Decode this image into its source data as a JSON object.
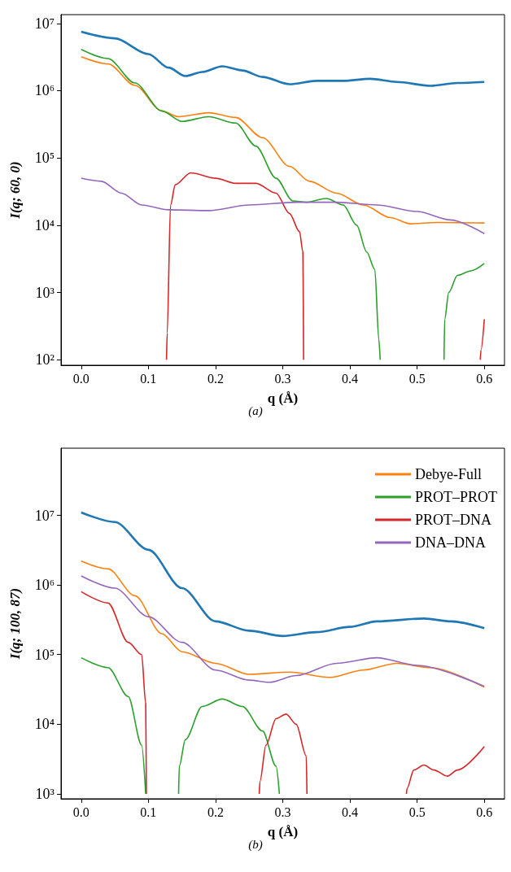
{
  "chart_data": [
    {
      "type": "line",
      "xlabel": "q (Å)",
      "ylabel": "I(q; 60, 0)",
      "annotations": [
        "(a)"
      ],
      "log": "y",
      "grid": false,
      "legend": false,
      "marker": "none",
      "line_style": "solid",
      "xlim": [
        -0.03,
        0.63
      ],
      "xticks": [
        {
          "value": 0,
          "label": "0.0"
        },
        0.1,
        0.2,
        0.3,
        0.4,
        0.5,
        0.6
      ],
      "ylim": [
        83,
        13500000
      ],
      "yticks": [
        {
          "value": 100,
          "label": "10²"
        },
        {
          "value": 1000,
          "label": "10³"
        },
        {
          "value": 10000,
          "label": "10⁴"
        },
        {
          "value": 100000,
          "label": "10⁵"
        },
        {
          "value": 1000000,
          "label": "10⁶"
        },
        {
          "value": 10000000,
          "label": "10⁷"
        }
      ],
      "series": [
        {
          "color": "#1f77b4",
          "x": [
            0,
            0.05,
            0.1,
            0.13,
            0.155,
            0.18,
            0.21,
            0.24,
            0.27,
            0.31,
            0.35,
            0.39,
            0.43,
            0.47,
            0.52,
            0.56,
            0.6
          ],
          "values": [
            7500000,
            6000000,
            3500000,
            2200000,
            1650000,
            1900000,
            2300000,
            2000000,
            1600000,
            1250000,
            1400000,
            1400000,
            1500000,
            1350000,
            1180000,
            1300000,
            1350000
          ]
        },
        {
          "color": "#ff7f0e",
          "x": [
            0,
            0.04,
            0.08,
            0.12,
            0.145,
            0.19,
            0.23,
            0.27,
            0.31,
            0.34,
            0.38,
            0.42,
            0.46,
            0.49,
            0.53,
            0.6
          ],
          "values": [
            3200000,
            2500000,
            1200000,
            500000,
            410000,
            470000,
            400000,
            200000,
            75000,
            45000,
            30000,
            20000,
            13000,
            10500,
            11000,
            10800
          ]
        },
        {
          "color": "#2ca02c",
          "x": [
            0,
            0.04,
            0.08,
            0.12,
            0.15,
            0.19,
            0.23,
            0.26,
            0.29,
            0.315,
            0.335,
            0.365,
            0.39,
            0.41,
            0.425,
            0.437,
            0.443,
            0.445,
            0.5,
            0.54,
            0.541,
            0.547,
            0.56,
            0.58,
            0.6
          ],
          "values": [
            4100000,
            3000000,
            1300000,
            500000,
            350000,
            410000,
            330000,
            150000,
            50000,
            23000,
            22000,
            25000,
            20000,
            10000,
            4000,
            2200,
            200,
            100,
            null,
            100,
            400,
            1000,
            1800,
            2100,
            2700
          ]
        },
        {
          "color": "#d62728",
          "x": [
            0.127,
            0.128,
            0.133,
            0.14,
            0.163,
            0.2,
            0.23,
            0.26,
            0.29,
            0.31,
            0.325,
            0.33,
            0.331,
            0.45,
            0.594,
            0.595,
            0.6
          ],
          "values": [
            100,
            250,
            20000,
            40000,
            60000,
            50000,
            42000,
            42000,
            30000,
            15000,
            8000,
            4000,
            100,
            null,
            100,
            140,
            400
          ]
        },
        {
          "color": "#9467bd",
          "x": [
            0,
            0.03,
            0.06,
            0.09,
            0.13,
            0.19,
            0.25,
            0.32,
            0.38,
            0.44,
            0.5,
            0.55,
            0.6
          ],
          "values": [
            50000,
            45000,
            30000,
            20000,
            17000,
            16500,
            20000,
            22000,
            22000,
            20000,
            16000,
            12000,
            7500
          ]
        }
      ]
    },
    {
      "type": "line",
      "xlabel": "q (Å)",
      "ylabel": "I(q; 100, 87)",
      "annotations": [
        "(b)"
      ],
      "log": "y",
      "grid": false,
      "legend": "top right",
      "marker": "none",
      "line_style": "solid",
      "xlim": [
        -0.03,
        0.63
      ],
      "xticks": [
        {
          "value": 0,
          "label": "0.0"
        },
        0.1,
        0.2,
        0.3,
        0.4,
        0.5,
        0.6
      ],
      "ylim": [
        850,
        92000000
      ],
      "yticks": [
        {
          "value": 1000,
          "label": "10³"
        },
        {
          "value": 10000,
          "label": "10⁴"
        },
        {
          "value": 100000,
          "label": "10⁵"
        },
        {
          "value": 1000000,
          "label": "10⁶"
        },
        {
          "value": 10000000,
          "label": "10⁷"
        }
      ],
      "series": [
        {
          "color": "#1f77b4",
          "x": [
            0,
            0.05,
            0.1,
            0.15,
            0.2,
            0.25,
            0.3,
            0.35,
            0.4,
            0.44,
            0.51,
            0.55,
            0.6
          ],
          "values": [
            11000000,
            8000000,
            3200000,
            900000,
            300000,
            220000,
            185000,
            210000,
            250000,
            300000,
            330000,
            300000,
            240000
          ]
        },
        {
          "name": "Debye-Full",
          "color": "#ff7f0e",
          "x": [
            0,
            0.04,
            0.08,
            0.12,
            0.15,
            0.2,
            0.25,
            0.31,
            0.37,
            0.42,
            0.47,
            0.52,
            0.6
          ],
          "values": [
            2200000,
            1700000,
            700000,
            200000,
            110000,
            75000,
            52000,
            56000,
            47000,
            60000,
            75000,
            65000,
            34000
          ]
        },
        {
          "name": "PROT–PROT",
          "color": "#2ca02c",
          "x": [
            0,
            0.04,
            0.07,
            0.09,
            0.096,
            0.12,
            0.145,
            0.146,
            0.155,
            0.18,
            0.21,
            0.24,
            0.27,
            0.29,
            0.295
          ],
          "values": [
            90000,
            65000,
            25000,
            5000,
            1000,
            null,
            1000,
            2500,
            6000,
            18000,
            23000,
            18000,
            8000,
            2500,
            1000
          ]
        },
        {
          "name": "PROT–DNA",
          "color": "#d62728",
          "x": [
            0,
            0.04,
            0.07,
            0.09,
            0.096,
            0.097,
            0.18,
            0.265,
            0.266,
            0.275,
            0.29,
            0.305,
            0.32,
            0.335,
            0.336,
            0.4,
            0.484,
            0.485,
            0.495,
            0.51,
            0.525,
            0.545,
            0.56,
            0.6
          ],
          "values": [
            800000,
            550000,
            150000,
            100000,
            20000,
            1000,
            null,
            1000,
            1500,
            5000,
            12000,
            14000,
            10000,
            3500,
            1000,
            null,
            1000,
            1200,
            2200,
            2600,
            2200,
            1800,
            2200,
            4800
          ]
        },
        {
          "name": "DNA–DNA",
          "color": "#9467bd",
          "x": [
            0,
            0.05,
            0.1,
            0.15,
            0.2,
            0.25,
            0.28,
            0.32,
            0.38,
            0.44,
            0.5,
            0.6
          ],
          "values": [
            1350000,
            900000,
            350000,
            150000,
            60000,
            43000,
            40000,
            50000,
            75000,
            90000,
            70000,
            35000
          ]
        }
      ]
    }
  ]
}
